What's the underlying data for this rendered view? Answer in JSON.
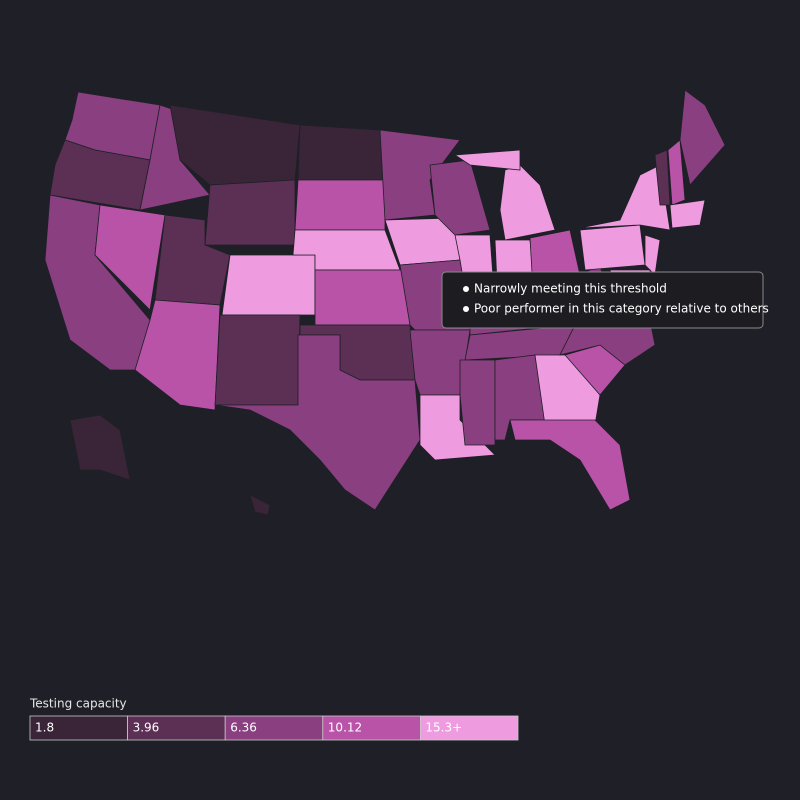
{
  "legend": {
    "title": "Testing capacity",
    "bins": [
      {
        "label": "1.8",
        "color": "#3a2438"
      },
      {
        "label": "3.96",
        "color": "#5c2f55"
      },
      {
        "label": "6.36",
        "color": "#8a3f80"
      },
      {
        "label": "10.12",
        "color": "#b953a8"
      },
      {
        "label": "15.3+",
        "color": "#ee9be0"
      }
    ]
  },
  "tooltip": {
    "items": [
      "Narrowly meeting this threshold",
      "Poor performer in this category relative to others"
    ]
  }
}
